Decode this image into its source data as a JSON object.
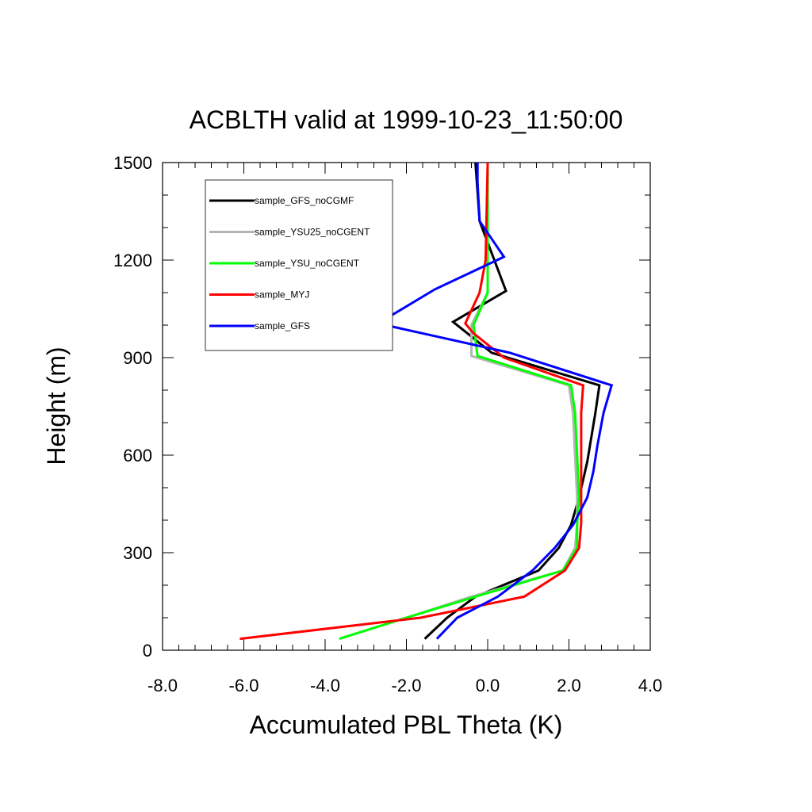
{
  "chart_data": {
    "type": "line",
    "title": "ACBLTH valid at 1999-10-23_11:50:00",
    "xlabel": "Accumulated PBL Theta (K)",
    "ylabel": "Height (m)",
    "xlim": [
      -8.0,
      4.0
    ],
    "ylim": [
      0,
      1500
    ],
    "xticks": [
      -8.0,
      -6.0,
      -4.0,
      -2.0,
      0.0,
      2.0,
      4.0
    ],
    "xtick_labels": [
      "-8.0",
      "-6.0",
      "-4.0",
      "-2.0",
      "0.0",
      "2.0",
      "4.0"
    ],
    "yticks": [
      0,
      300,
      600,
      900,
      1200,
      1500
    ],
    "ytick_labels": [
      "0",
      "300",
      "600",
      "900",
      "1200",
      "1500"
    ],
    "grid": false,
    "legend_position": "top-left",
    "series": [
      {
        "name": "sample_GFS_noCGMF",
        "color": "#000000",
        "points": [
          [
            -1.55,
            35
          ],
          [
            -1.0,
            100
          ],
          [
            -0.3,
            165
          ],
          [
            1.25,
            245
          ],
          [
            1.75,
            315
          ],
          [
            2.05,
            385
          ],
          [
            2.25,
            470
          ],
          [
            2.45,
            580
          ],
          [
            2.65,
            730
          ],
          [
            2.75,
            815
          ],
          [
            0.1,
            915
          ],
          [
            -0.85,
            1010
          ],
          [
            0.45,
            1105
          ],
          [
            -0.2,
            1320
          ],
          [
            -0.3,
            1500
          ]
        ]
      },
      {
        "name": "sample_YSU25_noCGENT",
        "color": "#b4b4b4",
        "points": [
          [
            -3.65,
            35
          ],
          [
            -2.0,
            100
          ],
          [
            -0.4,
            165
          ],
          [
            1.85,
            245
          ],
          [
            2.15,
            315
          ],
          [
            2.2,
            390
          ],
          [
            2.2,
            470
          ],
          [
            2.15,
            600
          ],
          [
            2.1,
            730
          ],
          [
            2.0,
            815
          ],
          [
            -0.4,
            905
          ],
          [
            -0.4,
            1000
          ],
          [
            0.0,
            1100
          ],
          [
            0.0,
            1200
          ],
          [
            0.0,
            1500
          ]
        ]
      },
      {
        "name": "sample_YSU_noCGENT",
        "color": "#00ff00",
        "points": [
          [
            -3.65,
            35
          ],
          [
            -2.0,
            100
          ],
          [
            -0.3,
            165
          ],
          [
            1.85,
            245
          ],
          [
            2.2,
            315
          ],
          [
            2.2,
            390
          ],
          [
            2.25,
            470
          ],
          [
            2.2,
            600
          ],
          [
            2.15,
            730
          ],
          [
            2.05,
            815
          ],
          [
            -0.25,
            905
          ],
          [
            -0.35,
            1000
          ],
          [
            0.0,
            1100
          ],
          [
            0.0,
            1200
          ],
          [
            0.0,
            1500
          ]
        ]
      },
      {
        "name": "sample_MYJ",
        "color": "#ff0000",
        "points": [
          [
            -6.1,
            35
          ],
          [
            -1.65,
            100
          ],
          [
            0.9,
            165
          ],
          [
            1.9,
            245
          ],
          [
            2.25,
            315
          ],
          [
            2.3,
            390
          ],
          [
            2.3,
            470
          ],
          [
            2.3,
            600
          ],
          [
            2.3,
            730
          ],
          [
            2.35,
            815
          ],
          [
            0.4,
            900
          ],
          [
            -0.35,
            975
          ],
          [
            -0.55,
            1005
          ],
          [
            -0.2,
            1100
          ],
          [
            -0.05,
            1200
          ],
          [
            0.0,
            1500
          ]
        ]
      },
      {
        "name": "sample_GFS",
        "color": "#0000ff",
        "points": [
          [
            -1.25,
            35
          ],
          [
            -0.75,
            100
          ],
          [
            0.25,
            165
          ],
          [
            1.1,
            245
          ],
          [
            1.65,
            315
          ],
          [
            2.1,
            385
          ],
          [
            2.45,
            470
          ],
          [
            2.6,
            550
          ],
          [
            2.7,
            630
          ],
          [
            2.85,
            730
          ],
          [
            3.05,
            815
          ],
          [
            0.55,
            915
          ],
          [
            -2.7,
            1005
          ],
          [
            -1.3,
            1110
          ],
          [
            0.4,
            1210
          ],
          [
            -0.2,
            1320
          ],
          [
            -0.25,
            1440
          ],
          [
            -0.25,
            1500
          ]
        ]
      }
    ]
  }
}
